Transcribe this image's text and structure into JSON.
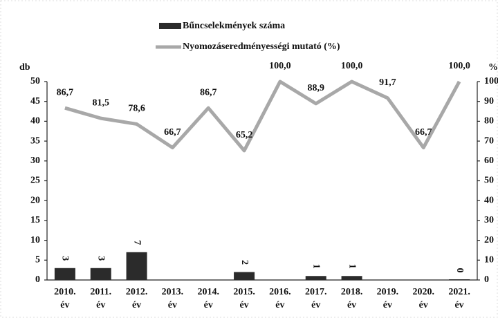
{
  "chart_data": {
    "type": "bar-line",
    "legend": [
      "Bűncselekmények száma",
      "Nyomozáseredményességi mutató (%)"
    ],
    "ylabel": "db",
    "y2label": "%",
    "categories": [
      "2010. év",
      "2011. év",
      "2012. év",
      "2013. év",
      "2014. év",
      "2015. év",
      "2016. év",
      "2017. év",
      "2018. év",
      "2019. év",
      "2020. év",
      "2021. év"
    ],
    "series": [
      {
        "name": "Bűncselekmények száma",
        "type": "bar",
        "color": "#2b2b2b",
        "values": [
          3,
          3,
          7,
          null,
          null,
          2,
          null,
          1,
          1,
          null,
          null,
          0
        ]
      },
      {
        "name": "Nyomozáseredményességi mutató (%)",
        "type": "line",
        "axis": "y2",
        "color": "#a8a8a8",
        "values": [
          86.7,
          81.5,
          78.6,
          66.7,
          86.7,
          65.2,
          100,
          88.9,
          100,
          91.7,
          66.7,
          100
        ],
        "value_labels": [
          "86,7",
          "81,5",
          "78,6",
          "66,7",
          "86,7",
          "65,2",
          "100,0",
          "88,9",
          "100,0",
          "91,7",
          "66,7",
          "100,0"
        ]
      }
    ],
    "ylim": [
      0,
      50
    ],
    "yticks": [
      0,
      5,
      10,
      15,
      20,
      25,
      30,
      35,
      40,
      45,
      50
    ],
    "y2lim": [
      0,
      100
    ],
    "y2ticks": [
      0,
      10,
      20,
      30,
      40,
      50,
      60,
      70,
      80,
      90,
      100
    ]
  }
}
